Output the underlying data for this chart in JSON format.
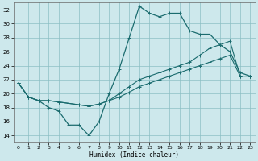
{
  "xlabel": "Humidex (Indice chaleur)",
  "bg_color": "#cde8ec",
  "grid_color": "#8bbfc4",
  "line_color": "#1a6b6e",
  "xlim": [
    -0.5,
    23.5
  ],
  "ylim": [
    13,
    33
  ],
  "yticks": [
    14,
    16,
    18,
    20,
    22,
    24,
    26,
    28,
    30,
    32
  ],
  "xticks": [
    0,
    1,
    2,
    3,
    4,
    5,
    6,
    7,
    8,
    9,
    10,
    11,
    12,
    13,
    14,
    15,
    16,
    17,
    18,
    19,
    20,
    21,
    22,
    23
  ],
  "series1_x": [
    0,
    1,
    2,
    3,
    4,
    5,
    6,
    7,
    8,
    9,
    10,
    11,
    12,
    13,
    14,
    15,
    16,
    17,
    18,
    19,
    20,
    21,
    22,
    23
  ],
  "series1_y": [
    21.5,
    19.5,
    19.0,
    18.0,
    17.5,
    15.5,
    15.5,
    14.0,
    16.0,
    20.0,
    23.5,
    28.0,
    32.5,
    31.5,
    31.0,
    31.5,
    31.5,
    29.0,
    28.5,
    28.5,
    27.0,
    26.0,
    23.0,
    22.5
  ],
  "series2_x": [
    0,
    1,
    2,
    3,
    4,
    5,
    6,
    7,
    8,
    9,
    10,
    11,
    12,
    13,
    14,
    15,
    16,
    17,
    18,
    19,
    20,
    21,
    22,
    23
  ],
  "series2_y": [
    21.5,
    19.5,
    19.0,
    19.0,
    18.8,
    18.6,
    18.4,
    18.2,
    18.5,
    19.0,
    19.5,
    20.2,
    21.0,
    21.5,
    22.0,
    22.5,
    23.0,
    23.5,
    24.0,
    24.5,
    25.0,
    25.5,
    22.5,
    22.5
  ],
  "series3_x": [
    0,
    1,
    2,
    3,
    4,
    5,
    6,
    7,
    8,
    9,
    10,
    11,
    12,
    13,
    14,
    15,
    16,
    17,
    18,
    19,
    20,
    21,
    22,
    23
  ],
  "series3_y": [
    21.5,
    19.5,
    19.0,
    19.0,
    18.8,
    18.6,
    18.4,
    18.2,
    18.5,
    19.0,
    20.0,
    21.0,
    22.0,
    22.5,
    23.0,
    23.5,
    24.0,
    24.5,
    25.5,
    26.5,
    27.0,
    27.5,
    22.5,
    22.5
  ]
}
